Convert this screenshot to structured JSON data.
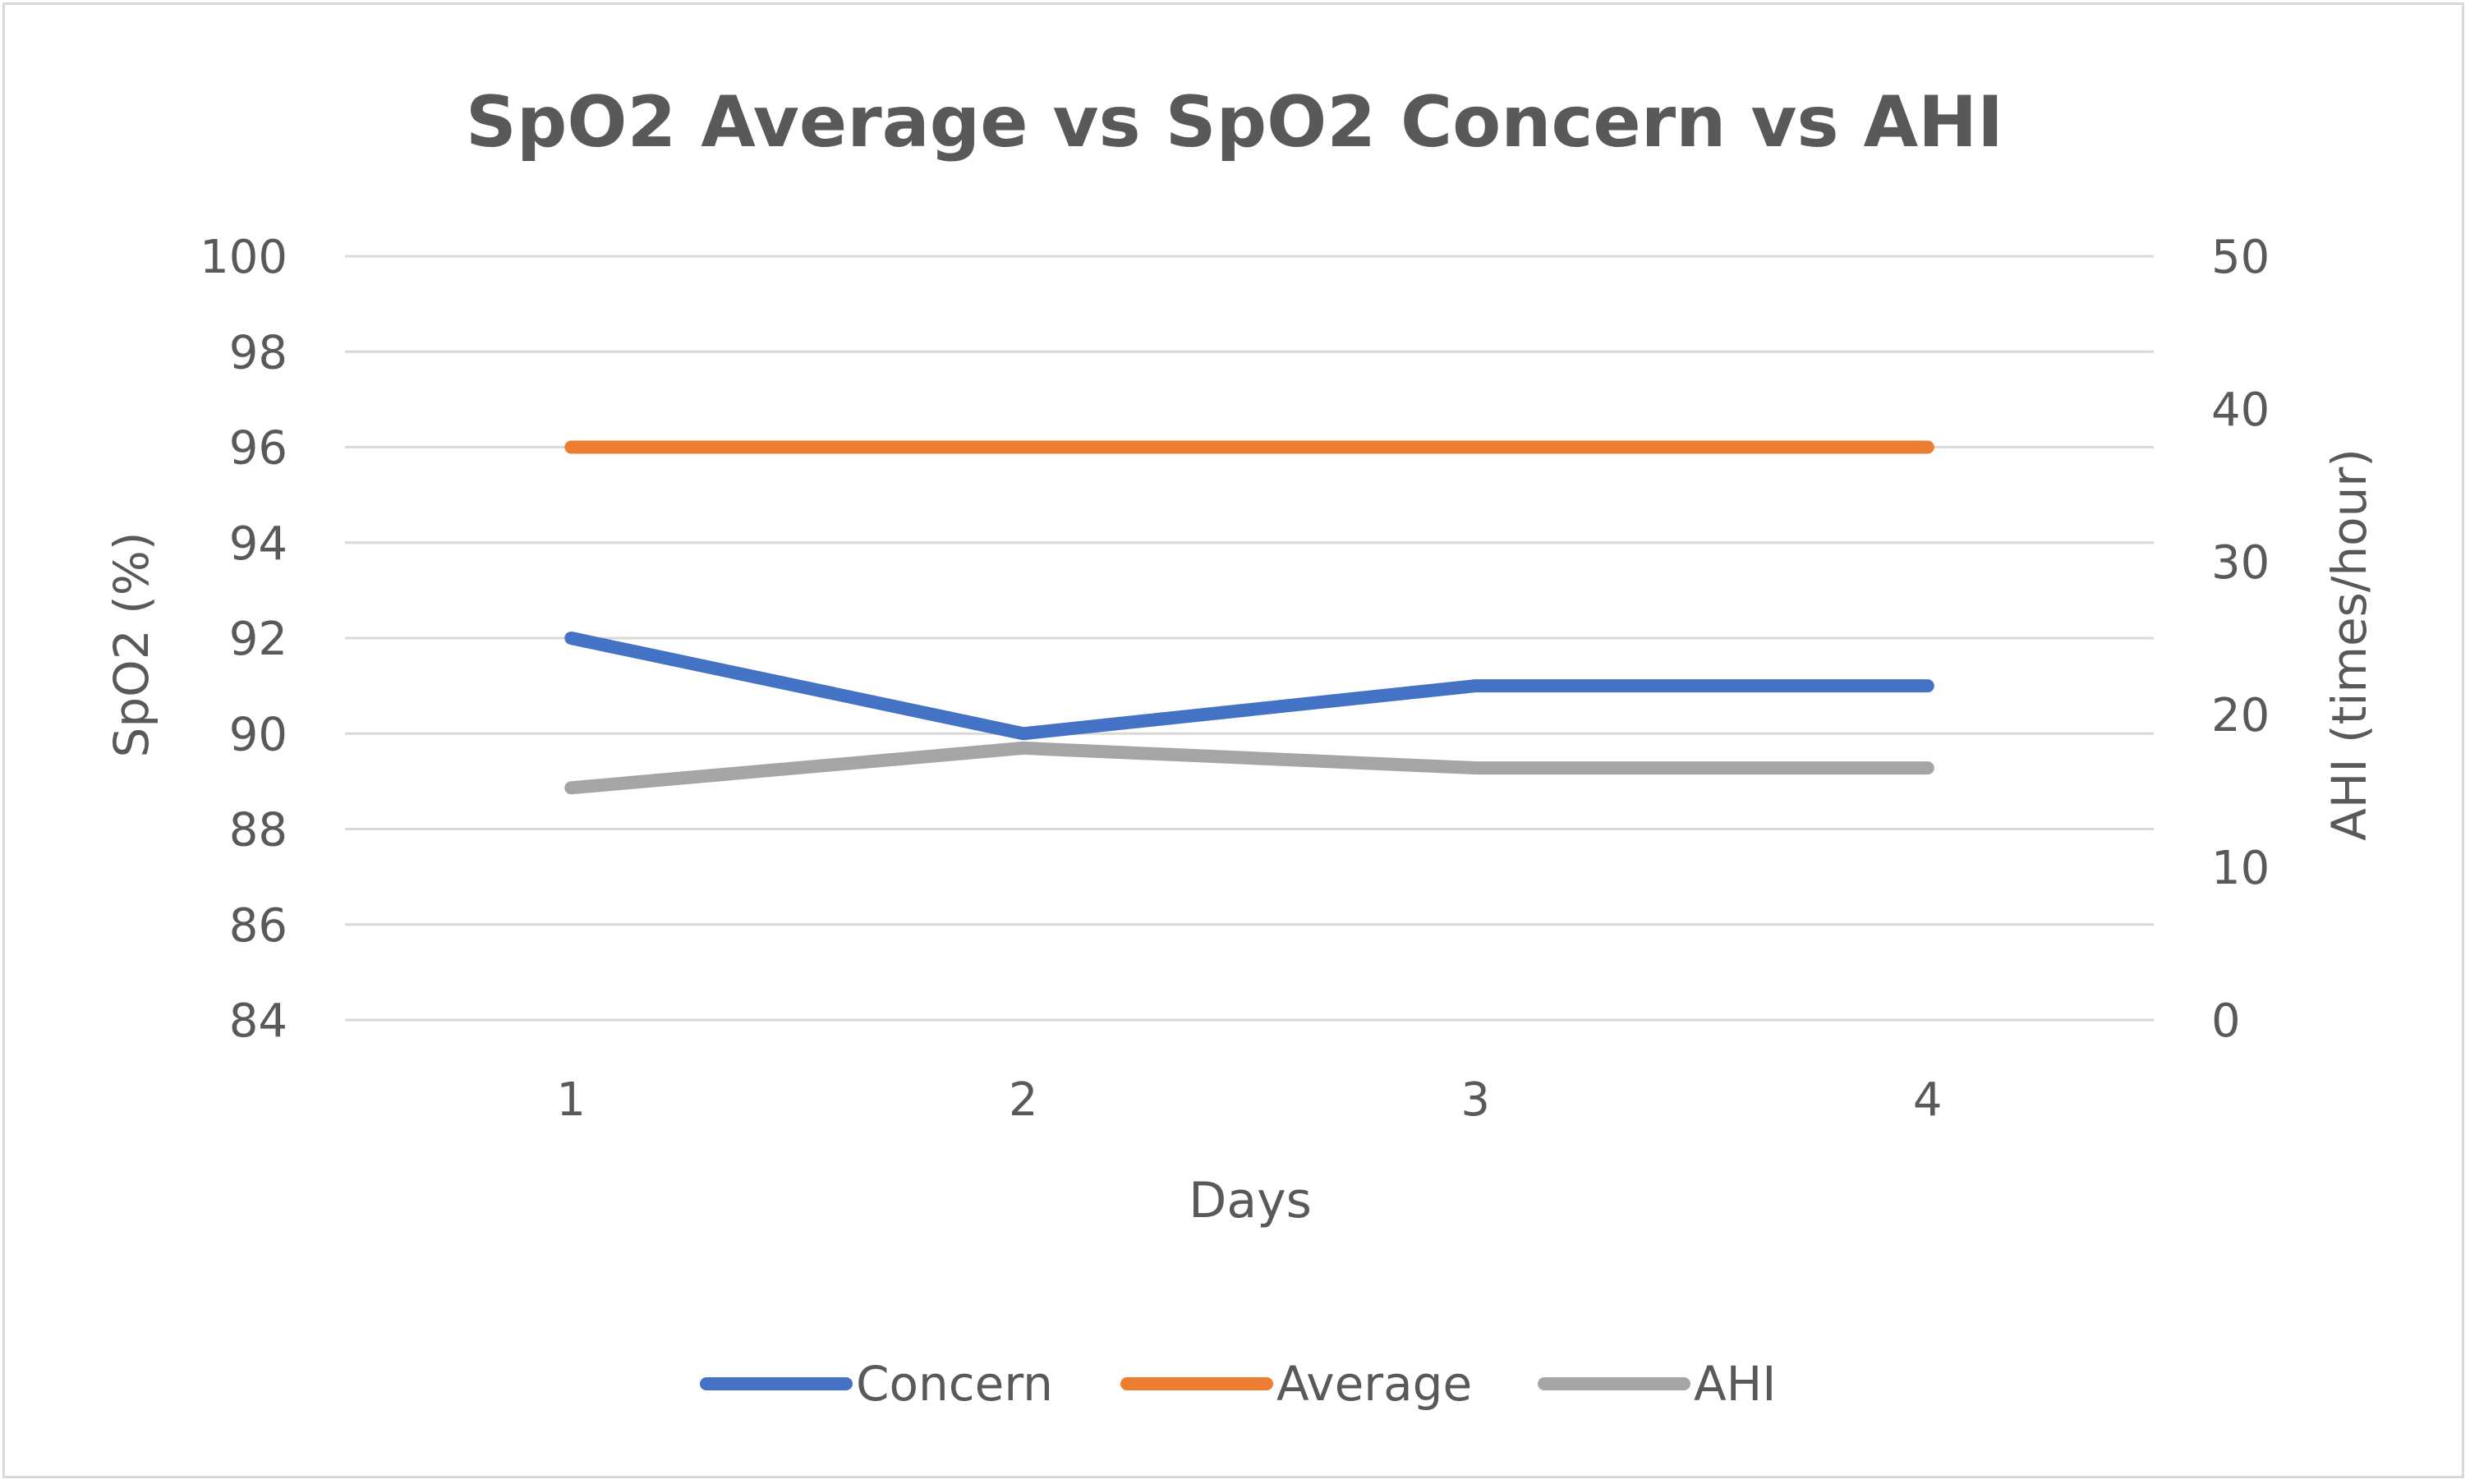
{
  "chart_data": {
    "type": "line",
    "title": "SpO2 Average vs SpO2 Concern vs AHI",
    "xlabel": "Days",
    "ylabel": "SpO2 (%)",
    "y2label": "AHI (times/hour)",
    "categories": [
      "1",
      "2",
      "3",
      "4"
    ],
    "ylim": [
      84,
      100
    ],
    "yticks": [
      "100",
      "98",
      "96",
      "94",
      "92",
      "90",
      "88",
      "86",
      "84"
    ],
    "y2lim": [
      0,
      50
    ],
    "y2ticks": [
      "50",
      "40",
      "30",
      "20",
      "10",
      "0"
    ],
    "grid": true,
    "legend_position": "bottom",
    "series": [
      {
        "name": "Concern",
        "axis": "left",
        "color": "#4472c4",
        "values": [
          92,
          90,
          91,
          91
        ]
      },
      {
        "name": "Average",
        "axis": "left",
        "color": "#ed7d31",
        "values": [
          96,
          96,
          96,
          96
        ]
      },
      {
        "name": "AHI",
        "axis": "right",
        "color": "#a5a5a5",
        "values": [
          15.2,
          17.8,
          16.5,
          16.5
        ]
      }
    ]
  }
}
